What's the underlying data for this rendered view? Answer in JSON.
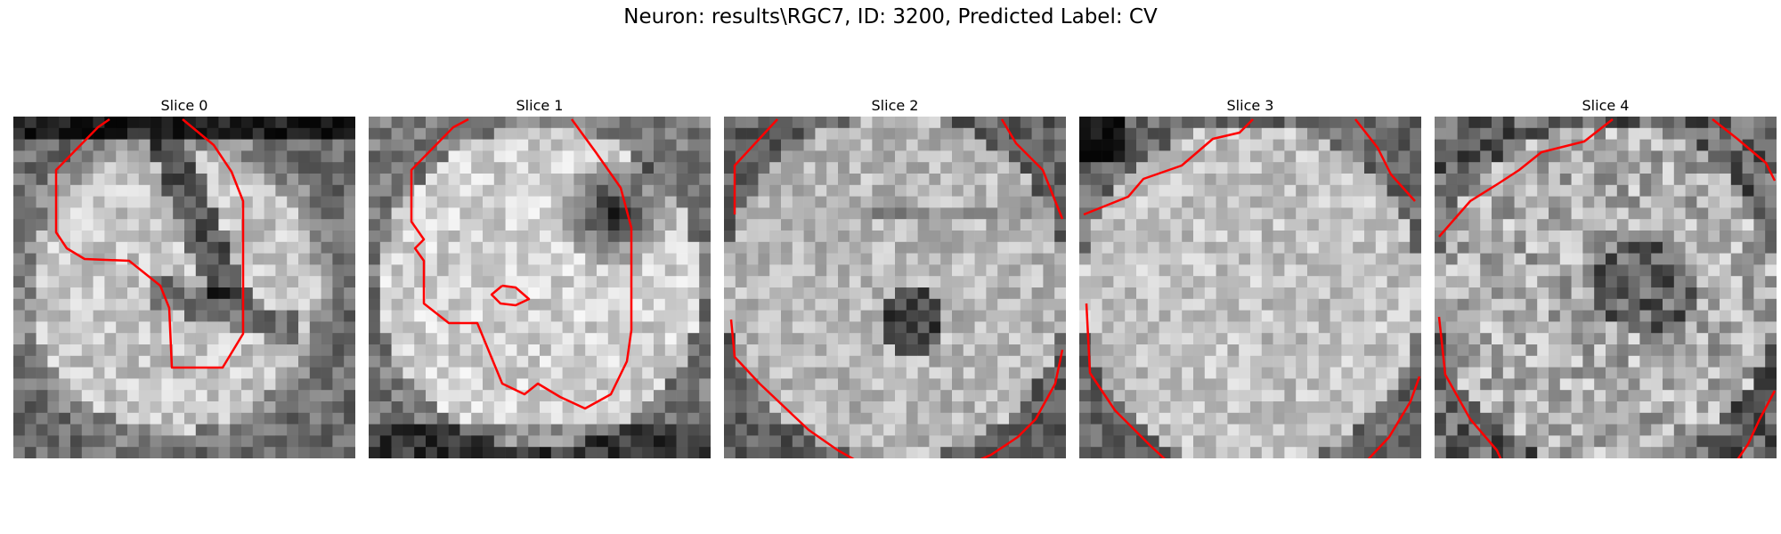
{
  "figure": {
    "suptitle": "Neuron: results\\RGC7, ID: 3200, Predicted Label: CV"
  },
  "contour_color": "#ff0000",
  "colormap": "gray",
  "slices": [
    {
      "title": "Slice 0"
    },
    {
      "title": "Slice 1"
    },
    {
      "title": "Slice 2"
    },
    {
      "title": "Slice 3"
    },
    {
      "title": "Slice 4"
    }
  ]
}
